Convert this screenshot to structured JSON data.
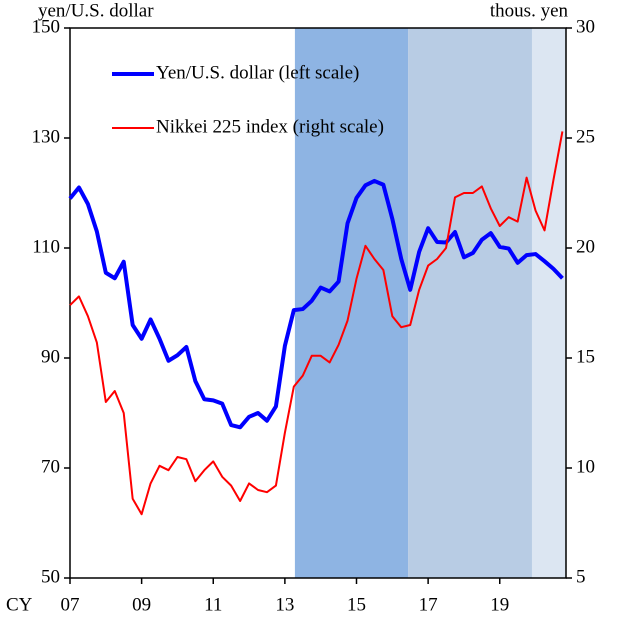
{
  "chart_data": {
    "type": "line",
    "y_label": "yen/U.S. dollar",
    "y2_label": "thous. yen",
    "x_label": "CY",
    "x": [
      2007.0,
      2007.25,
      2007.5,
      2007.75,
      2008.0,
      2008.25,
      2008.5,
      2008.75,
      2009.0,
      2009.25,
      2009.5,
      2009.75,
      2010.0,
      2010.25,
      2010.5,
      2010.75,
      2011.0,
      2011.25,
      2011.5,
      2011.75,
      2012.0,
      2012.25,
      2012.5,
      2012.75,
      2013.0,
      2013.25,
      2013.5,
      2013.75,
      2014.0,
      2014.25,
      2014.5,
      2014.75,
      2015.0,
      2015.25,
      2015.5,
      2015.75,
      2016.0,
      2016.25,
      2016.5,
      2016.75,
      2017.0,
      2017.25,
      2017.5,
      2017.75,
      2018.0,
      2018.25,
      2018.5,
      2018.75,
      2019.0,
      2019.25,
      2019.5,
      2019.75,
      2020.0,
      2020.25,
      2020.5,
      2020.75
    ],
    "series": [
      {
        "name": "Yen/U.S. dollar (left scale)",
        "color": "#0000ff",
        "width": 4,
        "axis": "y",
        "values": [
          119,
          121,
          118,
          113,
          105.5,
          104.5,
          107.5,
          96,
          93.5,
          97,
          93.5,
          89.5,
          90.5,
          92,
          85.8,
          82.5,
          82.3,
          81.7,
          77.8,
          77.4,
          79.3,
          80,
          78.6,
          81.2,
          92.2,
          98.7,
          98.9,
          100.4,
          102.8,
          102.1,
          103.9,
          114.5,
          119.1,
          121.4,
          122.2,
          121.5,
          115.3,
          108,
          102.4,
          109.3,
          113.6,
          111.1,
          111,
          112.9,
          108.3,
          109.1,
          111.5,
          112.7,
          110.2,
          109.9,
          107.3,
          108.7,
          108.9,
          107.6,
          106.2,
          104.5
        ]
      },
      {
        "name": "Nikkei 225 index (right scale)",
        "color": "#ff0000",
        "width": 2,
        "axis": "y2",
        "values": [
          17.4,
          17.8,
          16.9,
          15.7,
          13.0,
          13.5,
          12.5,
          8.6,
          7.9,
          9.3,
          10.1,
          9.9,
          10.5,
          10.4,
          9.4,
          9.9,
          10.3,
          9.6,
          9.2,
          8.5,
          9.3,
          9.0,
          8.9,
          9.2,
          11.6,
          13.7,
          14.2,
          15.1,
          15.1,
          14.8,
          15.6,
          16.7,
          18.6,
          20.1,
          19.5,
          19.0,
          16.9,
          16.4,
          16.5,
          18.1,
          19.2,
          19.5,
          20.0,
          22.3,
          22.5,
          22.5,
          22.8,
          21.8,
          21.0,
          21.4,
          21.2,
          23.2,
          21.7,
          20.8,
          23.1,
          25.3
        ]
      }
    ],
    "shaded_regions": [
      {
        "start": 2013.28,
        "end": 2016.44,
        "color": "#8eb4e3"
      },
      {
        "start": 2016.44,
        "end": 2019.9,
        "color": "#b8cce4"
      },
      {
        "start": 2019.9,
        "end": 2020.85,
        "color": "#dce6f2"
      }
    ],
    "xlim": [
      2007,
      2020.85
    ],
    "xticks": [
      {
        "value": 2007,
        "label": "07"
      },
      {
        "value": 2009,
        "label": "09"
      },
      {
        "value": 2011,
        "label": "11"
      },
      {
        "value": 2013,
        "label": "13"
      },
      {
        "value": 2015,
        "label": "15"
      },
      {
        "value": 2017,
        "label": "17"
      },
      {
        "value": 2019,
        "label": "19"
      }
    ],
    "ylim": [
      50,
      150
    ],
    "yticks": [
      50,
      70,
      90,
      110,
      130,
      150
    ],
    "y2lim": [
      5,
      30
    ],
    "y2ticks": [
      5,
      10,
      15,
      20,
      25,
      30
    ],
    "legend": "upper left",
    "grid": false
  }
}
